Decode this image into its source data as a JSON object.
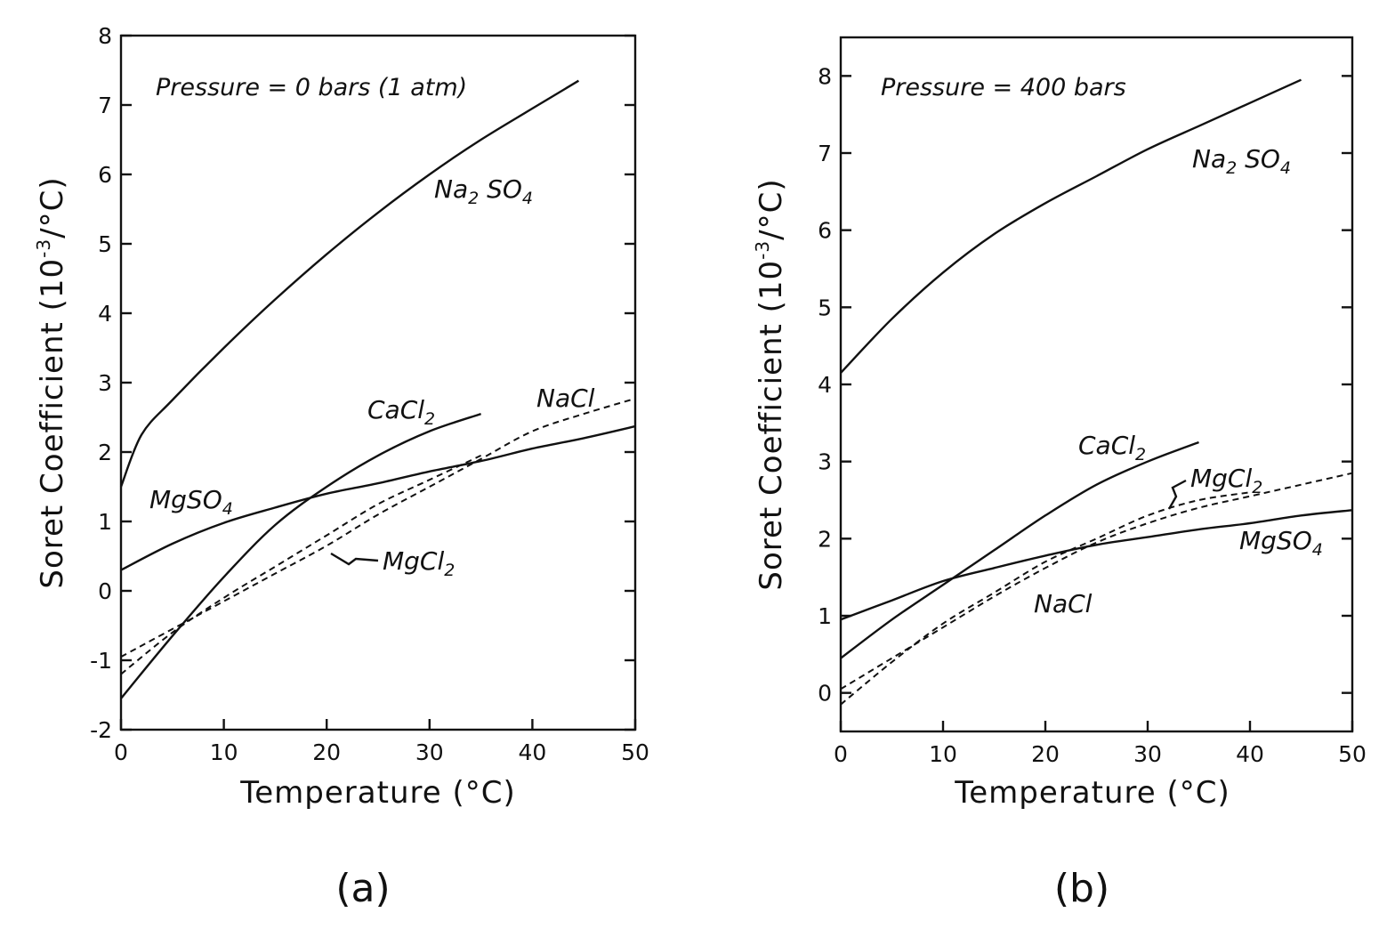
{
  "chart_data": [
    {
      "type": "line",
      "panel_label": "(a)",
      "annotation": "Pressure = 0 bars (1 atm)",
      "xlabel": "Temperature (°C)",
      "ylabel": "Soret Coefficient (10⁻³/°C)",
      "xlim": [
        0,
        50
      ],
      "ylim": [
        -2,
        8
      ],
      "xticks": [
        "0",
        "10",
        "20",
        "30",
        "40",
        "50"
      ],
      "yticks": [
        "-2",
        "-1",
        "0",
        "1",
        "2",
        "3",
        "4",
        "5",
        "6",
        "7",
        "8"
      ],
      "series": [
        {
          "name": "Na₂SO₄",
          "style": "solid",
          "x": [
            0,
            2,
            5,
            10,
            15,
            20,
            25,
            30,
            35,
            40,
            44.5
          ],
          "y": [
            1.5,
            2.25,
            2.75,
            3.5,
            4.2,
            4.85,
            5.45,
            6.0,
            6.5,
            6.95,
            7.35
          ]
        },
        {
          "name": "CaCl₂",
          "style": "solid",
          "x": [
            0,
            5,
            10,
            15,
            20,
            25,
            30,
            35
          ],
          "y": [
            -1.55,
            -0.65,
            0.2,
            0.95,
            1.5,
            1.95,
            2.3,
            2.55
          ]
        },
        {
          "name": "MgSO₄",
          "style": "solid",
          "x": [
            0,
            5,
            10,
            15,
            20,
            25,
            30,
            35,
            40,
            45,
            50
          ],
          "y": [
            0.3,
            0.68,
            0.98,
            1.2,
            1.4,
            1.55,
            1.72,
            1.87,
            2.05,
            2.2,
            2.37
          ]
        },
        {
          "name": "NaCl",
          "style": "dashed",
          "x": [
            0,
            5,
            10,
            15,
            20,
            25,
            30,
            35,
            40,
            45,
            50
          ],
          "y": [
            -0.95,
            -0.55,
            -0.15,
            0.25,
            0.65,
            1.1,
            1.5,
            1.9,
            2.3,
            2.55,
            2.77
          ]
        },
        {
          "name": "MgCl₂",
          "style": "dashed",
          "x": [
            0,
            5,
            10,
            15,
            20,
            25,
            30,
            35
          ],
          "y": [
            -1.2,
            -0.6,
            -0.1,
            0.35,
            0.8,
            1.25,
            1.6,
            1.95
          ]
        }
      ]
    },
    {
      "type": "line",
      "panel_label": "(b)",
      "annotation": "Pressure = 400 bars",
      "xlabel": "Temperature (°C)",
      "ylabel": "Soret Coefficient (10⁻³/°C)",
      "xlim": [
        0,
        50
      ],
      "ylim": [
        -0.5,
        8.5
      ],
      "xticks": [
        "0",
        "10",
        "20",
        "30",
        "40",
        "50"
      ],
      "yticks": [
        "0",
        "1",
        "2",
        "3",
        "4",
        "5",
        "6",
        "7",
        "8"
      ],
      "series": [
        {
          "name": "Na₂SO₄",
          "style": "solid",
          "x": [
            0,
            5,
            10,
            15,
            20,
            25,
            30,
            35,
            40,
            45
          ],
          "y": [
            4.15,
            4.85,
            5.45,
            5.95,
            6.35,
            6.7,
            7.05,
            7.35,
            7.65,
            7.95
          ]
        },
        {
          "name": "CaCl₂",
          "style": "solid",
          "x": [
            0,
            5,
            10,
            15,
            20,
            25,
            30,
            35
          ],
          "y": [
            0.45,
            0.95,
            1.4,
            1.85,
            2.3,
            2.7,
            3.0,
            3.25
          ]
        },
        {
          "name": "MgCl₂",
          "style": "dashed",
          "x": [
            0,
            5,
            10,
            15,
            20,
            25,
            30,
            35,
            40
          ],
          "y": [
            -0.15,
            0.4,
            0.9,
            1.3,
            1.7,
            2.0,
            2.3,
            2.5,
            2.6
          ]
        },
        {
          "name": "MgSO₄",
          "style": "solid",
          "x": [
            0,
            5,
            10,
            15,
            20,
            25,
            30,
            35,
            40,
            45,
            50
          ],
          "y": [
            0.95,
            1.2,
            1.45,
            1.62,
            1.78,
            1.92,
            2.02,
            2.12,
            2.2,
            2.3,
            2.37
          ]
        },
        {
          "name": "NaCl",
          "style": "dashed",
          "x": [
            0,
            5,
            10,
            15,
            20,
            25,
            30,
            35,
            40,
            45,
            50
          ],
          "y": [
            0.05,
            0.45,
            0.85,
            1.25,
            1.62,
            1.95,
            2.2,
            2.4,
            2.55,
            2.7,
            2.85
          ]
        }
      ]
    }
  ]
}
